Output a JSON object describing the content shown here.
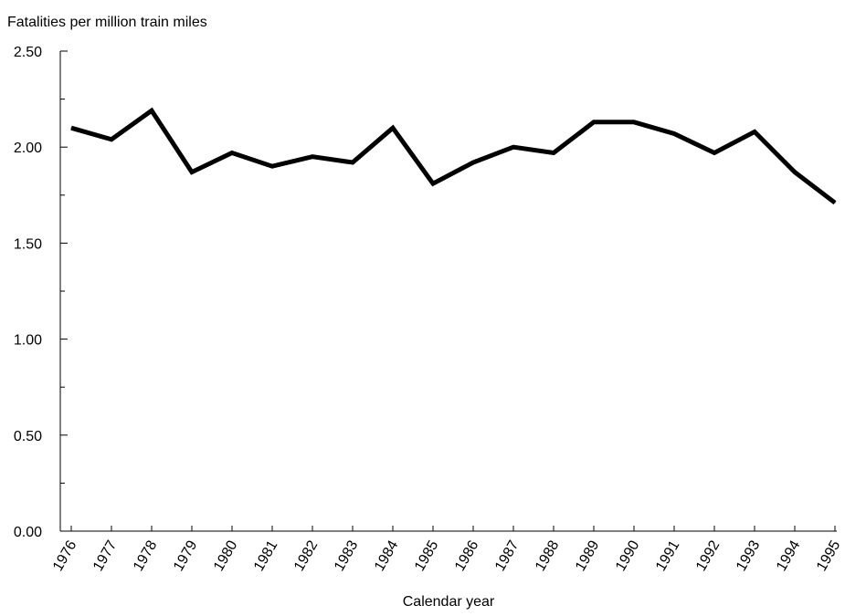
{
  "chart_data": {
    "type": "line",
    "title": "",
    "ylabel": "Fatalities per million train miles",
    "xlabel": "Calendar year",
    "ylim": [
      0,
      2.5
    ],
    "y_ticks": [
      "0.00",
      "0.50",
      "1.00",
      "1.50",
      "2.00",
      "2.50"
    ],
    "grid": false,
    "line_color": "#000000",
    "categories": [
      "1976",
      "1977",
      "1978",
      "1979",
      "1980",
      "1981",
      "1982",
      "1983",
      "1984",
      "1985",
      "1986",
      "1987",
      "1988",
      "1989",
      "1990",
      "1991",
      "1992",
      "1993",
      "1994",
      "1995"
    ],
    "series": [
      {
        "values": [
          2.1,
          2.04,
          2.19,
          1.87,
          1.97,
          1.9,
          1.95,
          1.92,
          2.1,
          1.81,
          1.92,
          2.0,
          1.97,
          2.13,
          2.13,
          2.07,
          1.97,
          2.08,
          1.87,
          1.71
        ]
      }
    ]
  }
}
